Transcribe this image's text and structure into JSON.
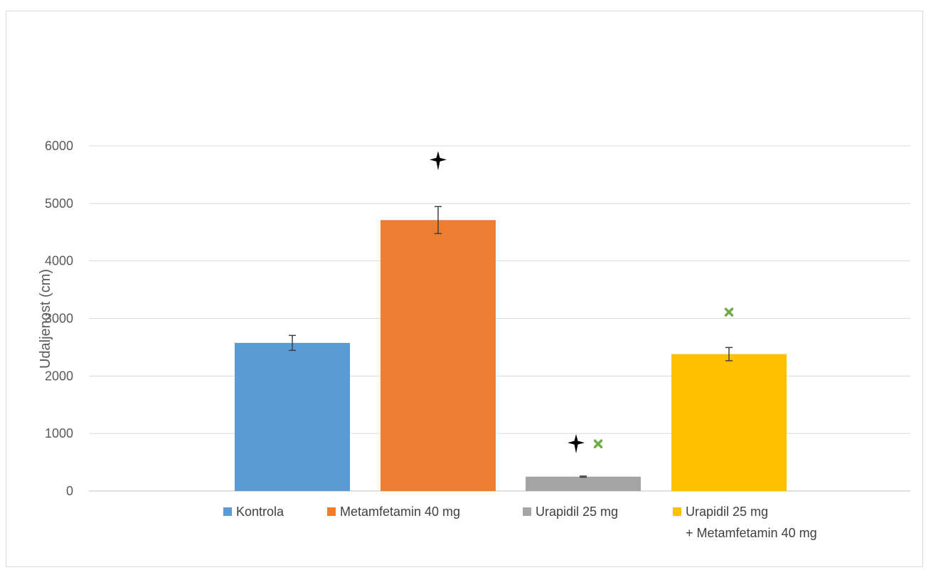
{
  "chart_data": {
    "type": "bar",
    "title": "",
    "xlabel": "",
    "ylabel": "Udaljenost (cm)",
    "ylim": [
      0,
      6000
    ],
    "yticks": [
      0,
      1000,
      2000,
      3000,
      4000,
      5000,
      6000
    ],
    "grid": true,
    "legend_position": "bottom",
    "categories": [
      "Kontrola",
      "Metamfetamin 40 mg",
      "Urapidil 25 mg",
      "Urapidil 25 mg + Metamfetamin 40 mg"
    ],
    "legend_lines": [
      [
        "Kontrola"
      ],
      [
        "Metamfetamin 40 mg"
      ],
      [
        "Urapidil 25 mg"
      ],
      [
        "Urapidil 25 mg",
        "+ Metamfetamin 40 mg"
      ]
    ],
    "values": [
      2575,
      4710,
      250,
      2380
    ],
    "error": [
      130,
      235,
      10,
      115
    ],
    "colors": [
      "#5b9bd5",
      "#ed7d31",
      "#a5a5a5",
      "#ffc000"
    ],
    "markers": [
      {
        "bar": 1,
        "symbol": "star",
        "color": "#000000",
        "y": 5760
      },
      {
        "bar": 2,
        "symbol": "star",
        "color": "#000000",
        "y": 840
      },
      {
        "bar": 2,
        "symbol": "cross",
        "color": "#70ad47",
        "y": 820
      },
      {
        "bar": 3,
        "symbol": "cross",
        "color": "#70ad47",
        "y": 3110
      }
    ]
  }
}
